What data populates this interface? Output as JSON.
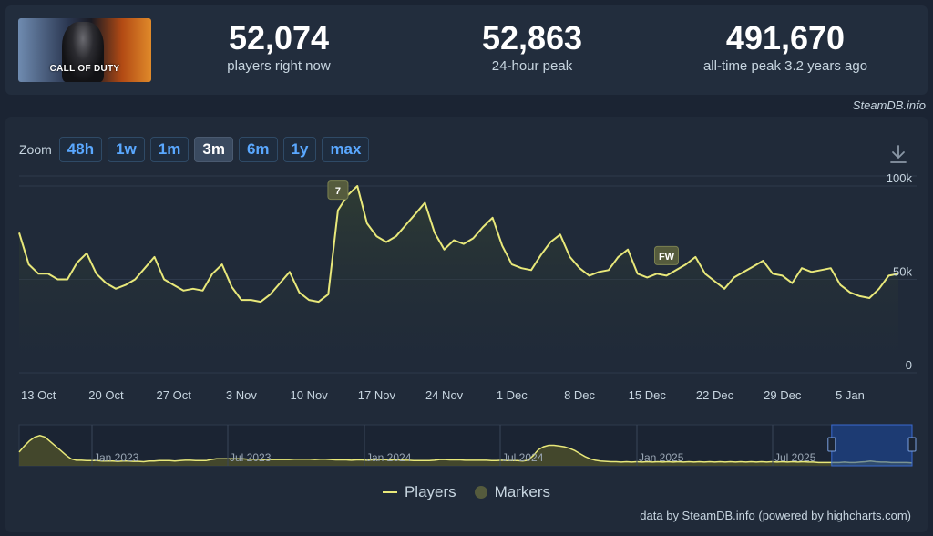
{
  "game": {
    "logo_text": "CALL OF DUTY"
  },
  "stats": [
    {
      "value": "52,074",
      "label": "players right now"
    },
    {
      "value": "52,863",
      "label": "24-hour peak"
    },
    {
      "value": "491,670",
      "label": "all-time peak 3.2 years ago"
    }
  ],
  "credit_top": "SteamDB.info",
  "zoom": {
    "label": "Zoom",
    "buttons": [
      "48h",
      "1w",
      "1m",
      "3m",
      "6m",
      "1y",
      "max"
    ],
    "active": "3m"
  },
  "legend": {
    "players": "Players",
    "markers": "Markers"
  },
  "credit_bottom": "data by SteamDB.info (powered by highcharts.com)",
  "colors": {
    "line": "#e8e87a",
    "marker": "#555b3d",
    "accent": "#5aa8ff",
    "grid": "#2e3a4c"
  },
  "chart_data": {
    "type": "line",
    "series": [
      {
        "name": "Players",
        "x": [
          "2024-10-11",
          "2024-10-12",
          "2024-10-13",
          "2024-10-14",
          "2024-10-15",
          "2024-10-16",
          "2024-10-17",
          "2024-10-18",
          "2024-10-19",
          "2024-10-20",
          "2024-10-21",
          "2024-10-22",
          "2024-10-23",
          "2024-10-24",
          "2024-10-25",
          "2024-10-26",
          "2024-10-27",
          "2024-10-28",
          "2024-10-29",
          "2024-10-30",
          "2024-10-31",
          "2024-11-01",
          "2024-11-02",
          "2024-11-03",
          "2024-11-04",
          "2024-11-05",
          "2024-11-06",
          "2024-11-07",
          "2024-11-08",
          "2024-11-09",
          "2024-11-10",
          "2024-11-11",
          "2024-11-12",
          "2024-11-13",
          "2024-11-14",
          "2024-11-15",
          "2024-11-16",
          "2024-11-17",
          "2024-11-18",
          "2024-11-19",
          "2024-11-20",
          "2024-11-21",
          "2024-11-22",
          "2024-11-23",
          "2024-11-24",
          "2024-11-25",
          "2024-11-26",
          "2024-11-27",
          "2024-11-28",
          "2024-11-29",
          "2024-11-30",
          "2024-12-01",
          "2024-12-02",
          "2024-12-03",
          "2024-12-04",
          "2024-12-05",
          "2024-12-06",
          "2024-12-07",
          "2024-12-08",
          "2024-12-09",
          "2024-12-10",
          "2024-12-11",
          "2024-12-12",
          "2024-12-13",
          "2024-12-14",
          "2024-12-15",
          "2024-12-16",
          "2024-12-17",
          "2024-12-18",
          "2024-12-19",
          "2024-12-20",
          "2024-12-21",
          "2024-12-22",
          "2024-12-23",
          "2024-12-24",
          "2024-12-25",
          "2024-12-26",
          "2024-12-27",
          "2024-12-28",
          "2024-12-29",
          "2024-12-30",
          "2024-12-31",
          "2025-01-01",
          "2025-01-02",
          "2025-01-03",
          "2025-01-04",
          "2025-01-05",
          "2025-01-06",
          "2025-01-07",
          "2025-01-08",
          "2025-01-09",
          "2025-01-10"
        ],
        "values": [
          75000,
          58000,
          53000,
          53000,
          50000,
          50000,
          59000,
          64000,
          53000,
          48000,
          45000,
          47000,
          50000,
          56000,
          62000,
          50000,
          47000,
          44000,
          45000,
          44000,
          53000,
          58000,
          46000,
          39000,
          39000,
          38000,
          42000,
          48000,
          54000,
          43000,
          39000,
          38000,
          42000,
          87000,
          95000,
          100000,
          80000,
          73000,
          70000,
          73000,
          79000,
          85000,
          91000,
          75000,
          66000,
          71000,
          69000,
          72000,
          78000,
          83000,
          68000,
          58000,
          56000,
          55000,
          63000,
          70000,
          74000,
          62000,
          56000,
          52000,
          54000,
          55000,
          62000,
          66000,
          53000,
          51000,
          53000,
          52000,
          55000,
          58000,
          62000,
          53000,
          49000,
          45000,
          51000,
          54000,
          57000,
          60000,
          53000,
          52000,
          48000,
          56000,
          54000,
          55000,
          56000,
          47000,
          43000,
          41000,
          40000,
          45000,
          52000,
          53000
        ]
      }
    ],
    "markers": [
      {
        "date": "2024-11-13",
        "label": "7"
      },
      {
        "date": "2024-12-17",
        "label": "FW"
      }
    ],
    "x_ticks": [
      "13 Oct",
      "20 Oct",
      "27 Oct",
      "3 Nov",
      "10 Nov",
      "17 Nov",
      "24 Nov",
      "1 Dec",
      "8 Dec",
      "15 Dec",
      "22 Dec",
      "29 Dec",
      "5 Jan"
    ],
    "y_ticks": [
      "0",
      "50k",
      "100k"
    ],
    "ylim": [
      0,
      100000
    ],
    "navigator": {
      "labels": [
        "Jan 2023",
        "Jul 2023",
        "Jan 2024",
        "Jul 2024",
        "Jan 2025",
        "Jul 2025"
      ],
      "values": [
        32,
        48,
        62,
        72,
        76,
        72,
        60,
        48,
        36,
        24,
        14,
        10,
        10,
        9,
        9,
        9,
        8,
        8,
        8,
        7,
        8,
        8,
        7,
        7,
        6,
        8,
        8,
        9,
        9,
        9,
        8,
        9,
        10,
        10,
        9,
        9,
        9,
        12,
        14,
        14,
        14,
        14,
        14,
        14,
        13,
        13,
        13,
        12,
        12,
        12,
        12,
        12,
        12,
        13,
        13,
        13,
        13,
        12,
        13,
        13,
        12,
        11,
        11,
        11,
        10,
        11,
        11,
        10,
        11,
        12,
        12,
        11,
        11,
        11,
        10,
        10,
        9,
        9,
        9,
        9,
        10,
        12,
        12,
        11,
        11,
        11,
        10,
        10,
        10,
        10,
        10,
        9,
        9,
        10,
        9,
        9,
        9,
        8,
        10,
        22,
        38,
        46,
        50,
        50,
        48,
        46,
        42,
        36,
        28,
        20,
        14,
        10,
        8,
        7,
        6,
        6,
        5,
        6,
        5,
        6,
        5,
        6,
        5,
        6,
        5,
        6,
        5,
        6,
        5,
        6,
        5,
        6,
        5,
        6,
        5,
        6,
        5,
        6,
        5,
        6,
        5,
        6,
        5,
        6,
        5,
        6,
        5,
        6,
        5,
        6,
        5,
        6,
        5,
        5,
        4,
        4,
        4,
        4,
        4,
        5,
        4,
        4,
        5,
        6,
        8,
        6,
        5,
        5,
        4,
        4,
        4,
        4,
        3
      ],
      "selected_start_fraction": 0.91,
      "max_value": 100
    }
  }
}
